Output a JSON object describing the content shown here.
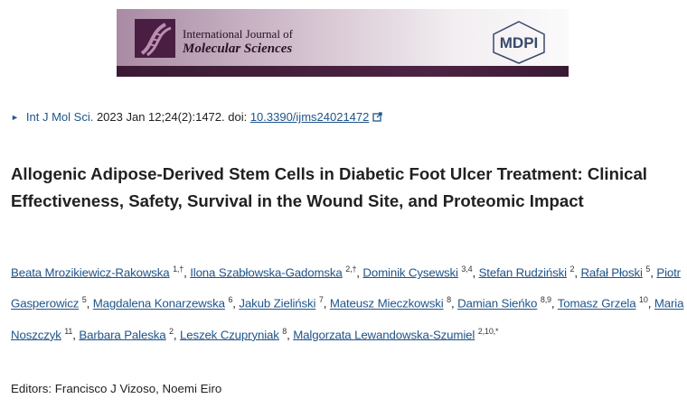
{
  "banner": {
    "journal_line1": "International Journal of",
    "journal_line2": "Molecular Sciences",
    "publisher": "MDPI"
  },
  "citation": {
    "journal": "Int J Mol Sci.",
    "details": " 2023 Jan 12;24(2):1472. doi: ",
    "doi": "10.3390/ijms24021472",
    "external_icon": "external-link-icon"
  },
  "title": "Allogenic Adipose-Derived Stem Cells in Diabetic Foot Ulcer Treatment: Clinical Effectiveness, Safety, Survival in the Wound Site, and Proteomic Impact",
  "authors": [
    {
      "name": "Beata Mrozikiewicz-Rakowska",
      "sup": "1,†"
    },
    {
      "name": "Ilona Szabłowska-Gadomska",
      "sup": "2,†"
    },
    {
      "name": "Dominik Cysewski",
      "sup": "3,4"
    },
    {
      "name": "Stefan Rudziński",
      "sup": "2"
    },
    {
      "name": "Rafał Płoski",
      "sup": "5"
    },
    {
      "name": "Piotr Gasperowicz",
      "sup": "5"
    },
    {
      "name": "Magdalena Konarzewska",
      "sup": "6"
    },
    {
      "name": "Jakub Zieliński",
      "sup": "7"
    },
    {
      "name": "Mateusz Mieczkowski",
      "sup": "8"
    },
    {
      "name": "Damian Sieńko",
      "sup": "8,9"
    },
    {
      "name": "Tomasz Grzela",
      "sup": "10"
    },
    {
      "name": "Maria Noszczyk",
      "sup": "11"
    },
    {
      "name": "Barbara Paleska",
      "sup": "2"
    },
    {
      "name": "Leszek Czupryniak",
      "sup": "8"
    },
    {
      "name": "Malgorzata Lewandowska-Szumiel",
      "sup": "2,10,*"
    }
  ],
  "editors": "Editors: Francisco J Vizoso, Noemi Eiro"
}
